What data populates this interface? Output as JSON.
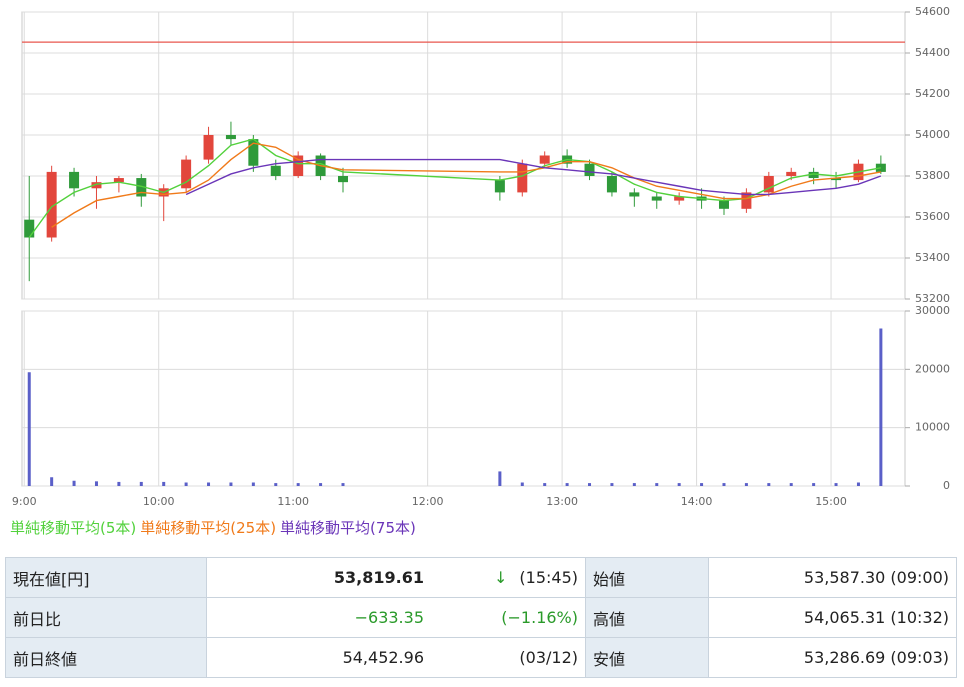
{
  "chart_data": [
    {
      "type": "candlestick",
      "x": [
        "9:00",
        "9:10",
        "9:20",
        "9:30",
        "9:40",
        "9:50",
        "10:00",
        "10:10",
        "10:20",
        "10:30",
        "10:40",
        "10:50",
        "11:00",
        "11:10",
        "11:20",
        "12:30",
        "12:40",
        "12:50",
        "13:00",
        "13:10",
        "13:20",
        "13:30",
        "13:40",
        "13:50",
        "14:00",
        "14:10",
        "14:20",
        "14:30",
        "14:40",
        "14:50",
        "15:00",
        "15:10",
        "15:20"
      ],
      "open": [
        53587,
        53500,
        53820,
        53740,
        53770,
        53790,
        53700,
        53740,
        53880,
        54000,
        53980,
        53850,
        53800,
        53900,
        53800,
        53780,
        53720,
        53860,
        53900,
        53860,
        53800,
        53720,
        53700,
        53680,
        53700,
        53680,
        53640,
        53720,
        53800,
        53820,
        53790,
        53780,
        53860
      ],
      "high": [
        53800,
        53850,
        53840,
        53800,
        53800,
        53810,
        53760,
        53900,
        54040,
        54065,
        54000,
        53880,
        53920,
        53910,
        53840,
        53800,
        53880,
        53920,
        53930,
        53880,
        53820,
        53740,
        53720,
        53720,
        53740,
        53700,
        53740,
        53820,
        53840,
        53840,
        53820,
        53880,
        53900
      ],
      "low": [
        53287,
        53480,
        53700,
        53640,
        53720,
        53650,
        53580,
        53720,
        53860,
        53950,
        53820,
        53780,
        53790,
        53780,
        53720,
        53680,
        53700,
        53840,
        53840,
        53780,
        53700,
        53650,
        53640,
        53660,
        53640,
        53610,
        53620,
        53700,
        53780,
        53760,
        53740,
        53770,
        53810
      ],
      "close": [
        53500,
        53820,
        53740,
        53770,
        53790,
        53700,
        53740,
        53880,
        54000,
        53980,
        53850,
        53800,
        53900,
        53800,
        53770,
        53720,
        53860,
        53900,
        53860,
        53800,
        53720,
        53700,
        53680,
        53700,
        53680,
        53640,
        53720,
        53800,
        53820,
        53790,
        53780,
        53860,
        53820
      ],
      "up_color": "#e2463c",
      "down_color": "#2f9a3a",
      "series": [
        {
          "name": "単純移動平均(5本)",
          "color": "#52d13c",
          "values": [
            53500,
            53650,
            53720,
            53760,
            53770,
            53750,
            53720,
            53770,
            53850,
            53950,
            53980,
            53900,
            53860,
            53860,
            53820,
            53780,
            53800,
            53850,
            53880,
            53870,
            53820,
            53760,
            53720,
            53700,
            53690,
            53680,
            53690,
            53740,
            53790,
            53810,
            53800,
            53820,
            53840
          ]
        },
        {
          "name": "単純移動平均(25本)",
          "color": "#f07a1a",
          "values": [
            null,
            53550,
            53620,
            53680,
            53700,
            53720,
            53710,
            53720,
            53780,
            53880,
            53960,
            53940,
            53880,
            53850,
            53830,
            53820,
            53820,
            53840,
            53870,
            53870,
            53840,
            53790,
            53750,
            53730,
            53710,
            53690,
            53690,
            53710,
            53750,
            53780,
            53790,
            53800,
            53820
          ]
        },
        {
          "name": "単純移動平均(75本)",
          "color": "#6a35b8",
          "values": [
            null,
            null,
            null,
            null,
            null,
            null,
            null,
            53710,
            53760,
            53810,
            53840,
            53860,
            53870,
            53880,
            53880,
            53880,
            53860,
            53840,
            53830,
            53820,
            53810,
            53790,
            53770,
            53750,
            53730,
            53720,
            53710,
            53710,
            53720,
            53730,
            53740,
            53760,
            53800
          ]
        }
      ],
      "reference_line": 54452.96,
      "reference_color": "#e8574e",
      "xlim": [
        "8:59",
        "15:33"
      ],
      "ylim": [
        53200,
        54600
      ],
      "yticks": [
        53200,
        53400,
        53600,
        53800,
        54000,
        54200,
        54400,
        54600
      ],
      "grid": true
    },
    {
      "type": "bar",
      "x": [
        "9:00",
        "9:10",
        "9:20",
        "9:30",
        "9:40",
        "9:50",
        "10:00",
        "10:10",
        "10:20",
        "10:30",
        "10:40",
        "10:50",
        "11:00",
        "11:10",
        "11:20",
        "12:30",
        "12:40",
        "12:50",
        "13:00",
        "13:10",
        "13:20",
        "13:30",
        "13:40",
        "13:50",
        "14:00",
        "14:10",
        "14:20",
        "14:30",
        "14:40",
        "14:50",
        "15:00",
        "15:10",
        "15:20"
      ],
      "values": [
        19500,
        1500,
        900,
        800,
        700,
        700,
        700,
        600,
        600,
        600,
        600,
        500,
        500,
        500,
        500,
        2500,
        600,
        500,
        500,
        500,
        500,
        500,
        500,
        500,
        500,
        500,
        500,
        500,
        500,
        500,
        500,
        600,
        27000
      ],
      "color": "#5a5fc8",
      "xlim": [
        "8:59",
        "15:33"
      ],
      "ylim": [
        0,
        30000
      ],
      "xticks": [
        "9:00",
        "10:00",
        "11:00",
        "12:00",
        "13:00",
        "14:00",
        "15:00"
      ],
      "yticks": [
        0,
        10000,
        20000,
        30000
      ],
      "grid": true
    }
  ],
  "table": {
    "rows": [
      {
        "label": "現在値[円]",
        "value": "53,819.61",
        "arrow": "↓",
        "note": "(15:45)",
        "label2": "始値",
        "value2": "53,587.30 (09:00)"
      },
      {
        "label": "前日比",
        "value": "−633.35",
        "note": "(−1.16%)",
        "label2": "高値",
        "value2": "54,065.31 (10:32)"
      },
      {
        "label": "前日終値",
        "value": "54,452.96",
        "note": "(03/12)",
        "label2": "安値",
        "value2": "53,286.69 (09:03)"
      }
    ]
  }
}
